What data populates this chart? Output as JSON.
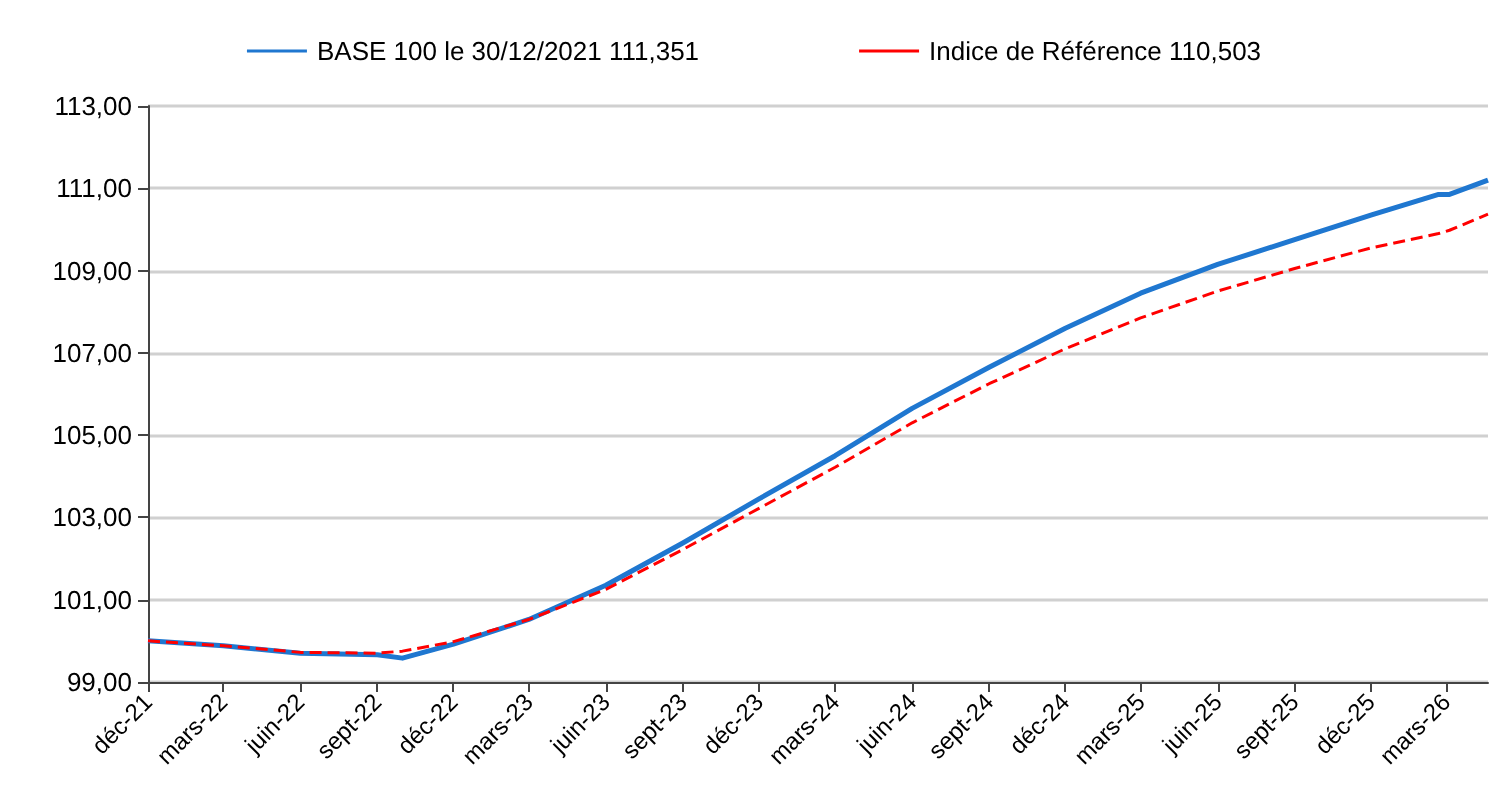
{
  "chart_data": {
    "type": "line",
    "legend": "top",
    "grid": "y",
    "marker": "none",
    "xlim": [
      "2021-12-01",
      "2026-04-20"
    ],
    "xticks": [
      {
        "value": "2021-12",
        "label": "déc-21"
      },
      {
        "value": "2022-03",
        "label": "mars-22"
      },
      {
        "value": "2022-06",
        "label": "juin-22"
      },
      {
        "value": "2022-09",
        "label": "sept-22"
      },
      {
        "value": "2022-12",
        "label": "déc-22"
      },
      {
        "value": "2023-03",
        "label": "mars-23"
      },
      {
        "value": "2023-06",
        "label": "juin-23"
      },
      {
        "value": "2023-09",
        "label": "sept-23"
      },
      {
        "value": "2023-12",
        "label": "déc-23"
      },
      {
        "value": "2024-03",
        "label": "mars-24"
      },
      {
        "value": "2024-06",
        "label": "juin-24"
      },
      {
        "value": "2024-09",
        "label": "sept-24"
      },
      {
        "value": "2024-12",
        "label": "déc-24"
      },
      {
        "value": "2025-03",
        "label": "mars-25"
      },
      {
        "value": "2025-06",
        "label": "juin-25"
      },
      {
        "value": "2025-09",
        "label": "sept-25"
      },
      {
        "value": "2025-12",
        "label": "déc-25"
      },
      {
        "value": "2026-03",
        "label": "mars-26"
      }
    ],
    "ylim": [
      99,
      113
    ],
    "yticks": [
      {
        "value": 99,
        "label": "99,00"
      },
      {
        "value": 101,
        "label": "101,00"
      },
      {
        "value": 103,
        "label": "103,00"
      },
      {
        "value": 105,
        "label": "105,00"
      },
      {
        "value": 107,
        "label": "107,00"
      },
      {
        "value": 109,
        "label": "109,00"
      },
      {
        "value": 111,
        "label": "111,00"
      },
      {
        "value": 113,
        "label": "113,00"
      }
    ],
    "x": [
      "2021-12-01",
      "2022-03-01",
      "2022-06-01",
      "2022-09-01",
      "2022-10-01",
      "2022-12-01",
      "2023-03-01",
      "2023-06-01",
      "2023-09-01",
      "2023-12-01",
      "2024-03-01",
      "2024-06-01",
      "2024-09-01",
      "2024-12-01",
      "2025-03-01",
      "2025-06-01",
      "2025-09-01",
      "2025-12-01",
      "2026-02-20",
      "2026-03-05",
      "2026-04-20"
    ],
    "series": [
      {
        "name": "BASE 100 le 30/12/2021 111,351",
        "color": "#1f77d0",
        "line_style": "solid",
        "values": [
          100.0,
          99.88,
          99.7,
          99.66,
          99.58,
          99.92,
          100.52,
          101.35,
          102.38,
          103.45,
          104.5,
          105.65,
          106.65,
          107.6,
          108.45,
          109.15,
          109.75,
          110.35,
          110.85,
          110.85,
          111.2
        ]
      },
      {
        "name": "Indice de Référence 110,503",
        "color": "#ff0000",
        "line_style": "dashed",
        "values": [
          100.0,
          99.88,
          99.72,
          99.7,
          99.75,
          99.98,
          100.52,
          101.25,
          102.22,
          103.22,
          104.22,
          105.3,
          106.25,
          107.1,
          107.85,
          108.5,
          109.05,
          109.55,
          109.9,
          109.98,
          110.37
        ]
      }
    ]
  }
}
